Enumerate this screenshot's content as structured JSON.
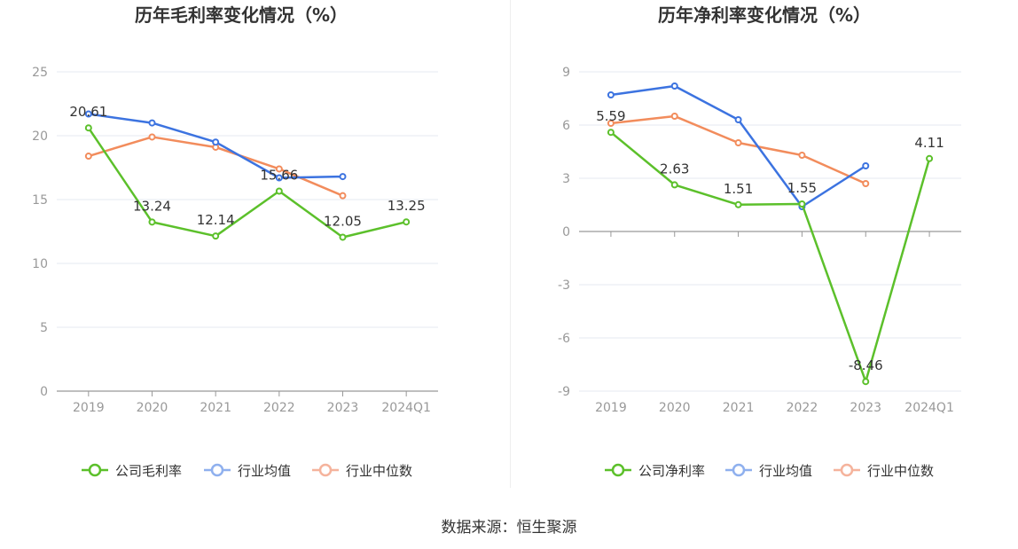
{
  "colors": {
    "company": "#5cc02b",
    "industry_avg": "#3c73e0",
    "industry_median": "#f28c5c",
    "legend_avg": "#8fb0ee",
    "legend_median": "#f5b39c",
    "grid": "#e6e9f2",
    "axis": "#999999",
    "tick_text": "#999999",
    "title": "#333333"
  },
  "source": {
    "label": "数据来源：恒生聚源"
  },
  "chart_data": [
    {
      "type": "line",
      "title": "历年毛利率变化情况（%）",
      "categories": [
        "2019",
        "2020",
        "2021",
        "2022",
        "2023",
        "2024Q1"
      ],
      "ylim": [
        0,
        25
      ],
      "yticks": [
        0,
        5,
        10,
        15,
        20,
        25
      ],
      "ytick_labels": [
        "0",
        "5",
        "10",
        "15",
        "20",
        "25"
      ],
      "series": [
        {
          "name": "公司毛利率",
          "key": "company",
          "values": [
            20.61,
            13.24,
            12.14,
            15.66,
            12.05,
            13.25
          ],
          "labels": [
            "20.61",
            "13.24",
            "12.14",
            "15.66",
            "12.05",
            "13.25"
          ]
        },
        {
          "name": "行业均值",
          "key": "industry_avg",
          "values": [
            21.7,
            21.0,
            19.5,
            16.7,
            16.8,
            null
          ]
        },
        {
          "name": "行业中位数",
          "key": "industry_median",
          "values": [
            18.4,
            19.9,
            19.1,
            17.4,
            15.3,
            null
          ]
        }
      ]
    },
    {
      "type": "line",
      "title": "历年净利率变化情况（%）",
      "categories": [
        "2019",
        "2020",
        "2021",
        "2022",
        "2023",
        "2024Q1"
      ],
      "ylim": [
        -9,
        9
      ],
      "yticks": [
        -9,
        -6,
        -3,
        0,
        3,
        6,
        9
      ],
      "ytick_labels": [
        "-9",
        "-6",
        "-3",
        "0",
        "3",
        "6",
        "9"
      ],
      "series": [
        {
          "name": "公司净利率",
          "key": "company",
          "values": [
            5.59,
            2.63,
            1.51,
            1.55,
            -8.46,
            4.11
          ],
          "labels": [
            "5.59",
            "2.63",
            "1.51",
            "1.55",
            "-8.46",
            "4.11"
          ]
        },
        {
          "name": "行业均值",
          "key": "industry_avg",
          "values": [
            7.7,
            8.2,
            6.3,
            1.4,
            3.7,
            null
          ]
        },
        {
          "name": "行业中位数",
          "key": "industry_median",
          "values": [
            6.1,
            6.5,
            5.0,
            4.3,
            2.7,
            null
          ]
        }
      ]
    }
  ]
}
